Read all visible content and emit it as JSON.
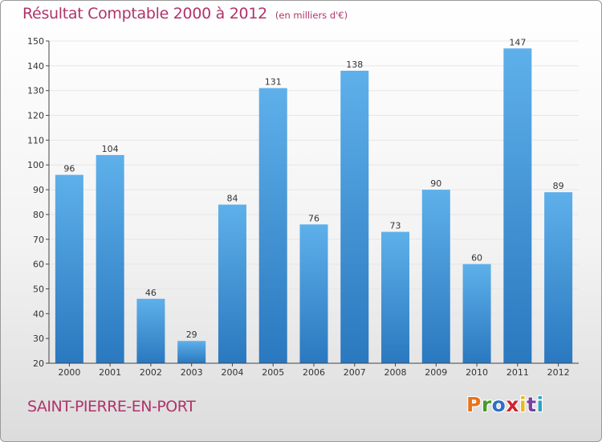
{
  "header": {
    "title": "Résultat Comptable 2000 à 2012",
    "subtitle": "(en milliers d'€)"
  },
  "footer": {
    "commune": "SAINT-PIERRE-EN-PORT",
    "logo": "Proxiti",
    "logo_colors": [
      "#e8731c",
      "#4a9a2a",
      "#2f6fc4",
      "#d0242f",
      "#e8b91c",
      "#7a3fa0",
      "#2fa0c4"
    ]
  },
  "colors": {
    "title": "#b0336b",
    "bar_top": "#5eb0ea",
    "bar_bottom": "#2a78bf",
    "grid": "#e6e6e6",
    "axis": "#444444"
  },
  "chart_data": {
    "type": "bar",
    "categories": [
      "2000",
      "2001",
      "2002",
      "2003",
      "2004",
      "2005",
      "2006",
      "2007",
      "2008",
      "2009",
      "2010",
      "2011",
      "2012"
    ],
    "values": [
      96,
      104,
      46,
      29,
      84,
      131,
      76,
      138,
      73,
      90,
      60,
      147,
      89
    ],
    "ylim": [
      20,
      150
    ],
    "yticks": [
      20,
      30,
      40,
      50,
      60,
      70,
      80,
      90,
      100,
      110,
      120,
      130,
      140,
      150
    ],
    "grid": true,
    "xlabel": "",
    "ylabel": ""
  }
}
